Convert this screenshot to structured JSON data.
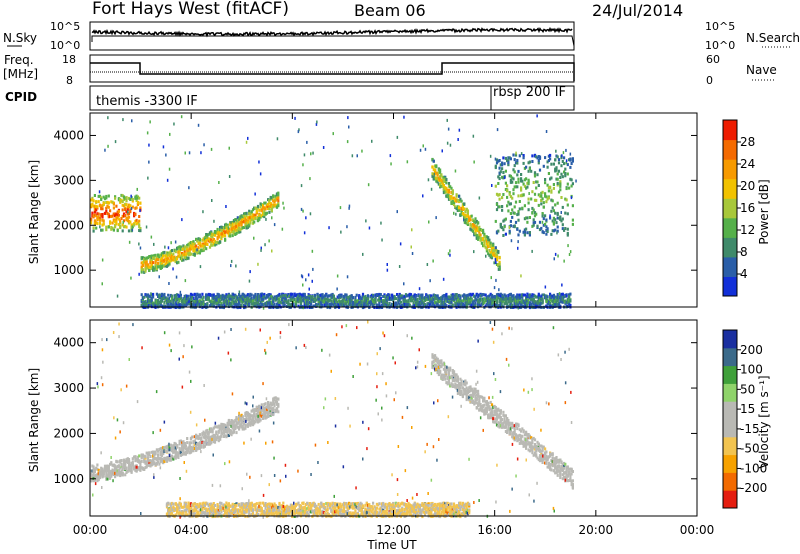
{
  "header": {
    "site": "Fort Hays West (fitACF)",
    "beam": "Beam 06",
    "date": "24/Jul/2014"
  },
  "top_panels": {
    "nsky_label": "N.Sky",
    "nsky_ticks": [
      "10^5",
      "10^0"
    ],
    "nsearch_label": "N.Search",
    "nsearch_ticks": [
      "10^5",
      "10^0"
    ],
    "freq_label": "Freq.",
    "freq_unit": "[MHz]",
    "freq_ticks": [
      "18",
      "8"
    ],
    "nave_label": "Nave",
    "nave_ticks": [
      "60",
      "0"
    ],
    "cpid_label": "CPID",
    "cpid_segments": [
      {
        "label": "themis -3300 IF",
        "start_hour": 0
      },
      {
        "label": "rbsp 200 IF",
        "start_hour": 16
      }
    ]
  },
  "chart_data": [
    {
      "type": "heatmap",
      "title": "",
      "xlabel": "Time UT",
      "ylabel": "Slant Range [km]",
      "xlim": [
        0,
        24
      ],
      "ylim": [
        180,
        4500
      ],
      "yticks": [
        1000,
        2000,
        3000,
        4000
      ],
      "colorbar_label": "Power [dB]",
      "colorbar_ticks": [
        "4",
        "8",
        "12",
        "16",
        "20",
        "24",
        "28"
      ],
      "colorbar_range": [
        0,
        30
      ],
      "colors": [
        "#1230d8",
        "#2a5ea8",
        "#3f8a6a",
        "#55b04a",
        "#a8c83a",
        "#f2c200",
        "#f79a00",
        "#f46a00",
        "#ee1c00"
      ],
      "features": [
        {
          "name": "early-band",
          "t": [
            0,
            2
          ],
          "range_km": [
            1900,
            2700
          ],
          "power": 24
        },
        {
          "name": "main-arc",
          "t": [
            2,
            7.4
          ],
          "range_km": [
            1000,
            2600
          ],
          "power": 20
        },
        {
          "name": "late-arc",
          "t": [
            13.5,
            16.2
          ],
          "range_km": [
            1200,
            3300
          ],
          "power": 18
        },
        {
          "name": "afternoon-band",
          "t": [
            16,
            19.1
          ],
          "range_km": [
            1800,
            3600
          ],
          "power": 12
        },
        {
          "name": "near-range-ground",
          "t": [
            2,
            19
          ],
          "range_km": [
            200,
            500
          ],
          "power": 8
        }
      ]
    },
    {
      "type": "heatmap",
      "title": "",
      "xlabel": "Time UT",
      "ylabel": "Slant Range [km]",
      "xlim": [
        0,
        24
      ],
      "ylim": [
        180,
        4500
      ],
      "yticks": [
        1000,
        2000,
        3000,
        4000
      ],
      "colorbar_label": "Velocity [m s⁻¹]",
      "colorbar_ticks": [
        "200",
        "100",
        "50",
        "15",
        "-15",
        "-50",
        "-100",
        "-200"
      ],
      "colorbar_range": [
        -250,
        250
      ],
      "colors": [
        "#e51e10",
        "#f26a00",
        "#f7a200",
        "#f2c450",
        "#b9b9b4",
        "#b9b9b4",
        "#8fd36a",
        "#3fa03a",
        "#3b6a8a",
        "#1a2fa0"
      ],
      "features": [
        {
          "name": "ground-scatter-arc",
          "t": [
            0,
            7.4
          ],
          "range_km": [
            1000,
            2700
          ],
          "velocity": 0
        },
        {
          "name": "ground-scatter-late",
          "t": [
            13.5,
            19.1
          ],
          "range_km": [
            1000,
            3600
          ],
          "velocity": 0
        },
        {
          "name": "near-range-negative",
          "t": [
            3,
            15
          ],
          "range_km": [
            200,
            500
          ],
          "velocity": -60
        }
      ]
    }
  ],
  "time_axis": {
    "ticks": [
      "00:00",
      "04:00",
      "08:00",
      "12:00",
      "16:00",
      "20:00",
      "00:00"
    ],
    "label": "Time UT"
  }
}
